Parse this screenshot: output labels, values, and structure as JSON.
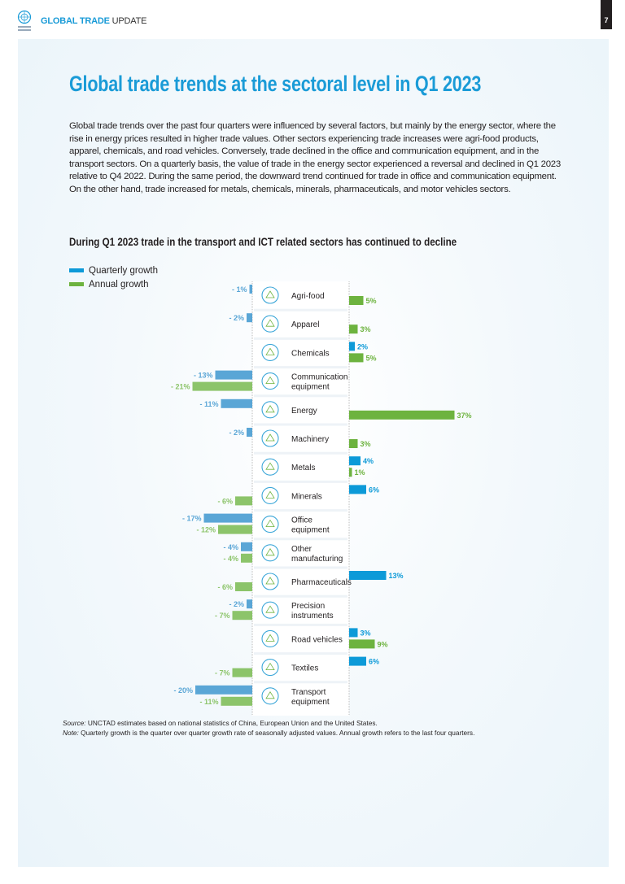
{
  "header": {
    "title_bold": "GLOBAL TRADE",
    "title_rest": " UPDATE",
    "page_number": "7"
  },
  "title": "Global trade trends at the sectoral level in Q1 2023",
  "body": "Global trade trends over the past four quarters were influenced by several factors, but mainly by the energy sector, where the rise in energy prices resulted in higher trade values. Other sectors experiencing trade increases were agri-food products, apparel, chemicals, and road vehicles. Conversely, trade declined in the office and communication equipment, and in the transport sectors. On a quarterly basis, the value of trade in the energy sector experienced a reversal and declined in Q1 2023 relative to Q4 2022.  During the same period, the downward trend continued for trade in office and communication equipment. On the other hand, trade increased for metals, chemicals, minerals, pharmaceuticals, and motor vehicles sectors.",
  "chart_data": {
    "type": "bar",
    "orientation": "horizontal",
    "title": "During Q1 2023 trade in the transport and ICT related sectors has continued to decline",
    "legend": "top-left",
    "unit": "%",
    "categories": [
      "Agri-food",
      "Apparel",
      "Chemicals",
      "Communication equipment",
      "Energy",
      "Machinery",
      "Metals",
      "Minerals",
      "Office equipment",
      "Other manufacturing",
      "Pharmaceuticals",
      "Precision instruments",
      "Road vehicles",
      "Textiles",
      "Transport equipment"
    ],
    "icons": [
      "tractor-icon",
      "jacket-icon",
      "flask-icon",
      "headset-icon",
      "lightning-icon",
      "gear-wrench-icon",
      "metal-coil-icon",
      "gem-icon",
      "monitor-icon",
      "factory-icon",
      "medical-cross-icon",
      "compass-icon",
      "car-icon",
      "sewing-machine-icon",
      "airplane-icon"
    ],
    "series": [
      {
        "name": "Quarterly growth",
        "color": "#0d9ad8",
        "negative_color": "#5aa6d6",
        "values": [
          -1,
          -2,
          2,
          -13,
          -11,
          -2,
          4,
          6,
          -17,
          -4,
          13,
          -2,
          3,
          6,
          -20
        ]
      },
      {
        "name": "Annual growth",
        "color": "#6db33f",
        "negative_color": "#8cc46a",
        "values": [
          5,
          3,
          5,
          -21,
          37,
          3,
          1,
          -6,
          -12,
          -4,
          -6,
          -7,
          9,
          -7,
          -11
        ]
      }
    ]
  },
  "notes": {
    "source_label": "Source:",
    "source": " UNCTAD estimates based on national statistics of China, European Union and the United States.",
    "note_label": "Note:",
    "note": " Quarterly growth is the quarter over quarter growth rate of seasonally adjusted values. Annual growth refers to the last four quarters."
  }
}
